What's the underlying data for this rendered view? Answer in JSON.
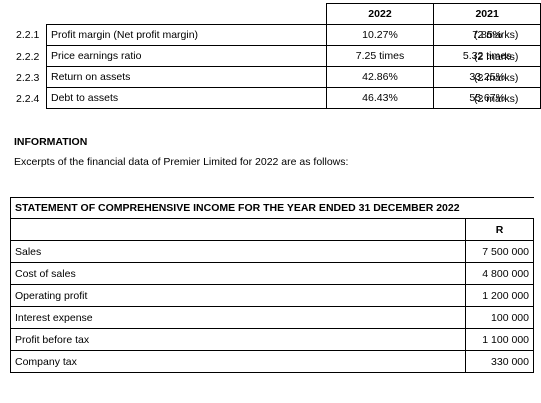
{
  "ratios": {
    "headers": [
      "2022",
      "2021"
    ],
    "rows": [
      {
        "num": "2.2.1",
        "label": "Profit margin (Net profit margin)",
        "y2022": "10.27%",
        "y2021": "7.85%",
        "marks": "(2 marks)"
      },
      {
        "num": "2.2.2",
        "label": "Price earnings ratio",
        "y2022": "7.25 times",
        "y2021": "5.32 times",
        "marks": "(2 marks)"
      },
      {
        "num": "2.2.3",
        "label": "Return on assets",
        "y2022": "42.86%",
        "y2021": "33.25%",
        "marks": "(2 marks)"
      },
      {
        "num": "2.2.4",
        "label": "Debt to assets",
        "y2022": "46.43%",
        "y2021": "55.67%",
        "marks": "(2 marks)"
      }
    ]
  },
  "information": {
    "heading": "INFORMATION",
    "text": "Excerpts of the financial data of Premier Limited for 2022 are as follows:"
  },
  "statement": {
    "title": "STATEMENT OF COMPREHENSIVE INCOME FOR THE YEAR ENDED 31 DECEMBER 2022",
    "currency": "R",
    "rows": [
      {
        "label": "Sales",
        "amount": "7 500 000"
      },
      {
        "label": "Cost of sales",
        "amount": "4 800 000"
      },
      {
        "label": "Operating profit",
        "amount": "1 200 000"
      },
      {
        "label": "Interest expense",
        "amount": "100 000"
      },
      {
        "label": "Profit before tax",
        "amount": "1 100 000"
      },
      {
        "label": "Company tax",
        "amount": "330 000"
      }
    ]
  }
}
